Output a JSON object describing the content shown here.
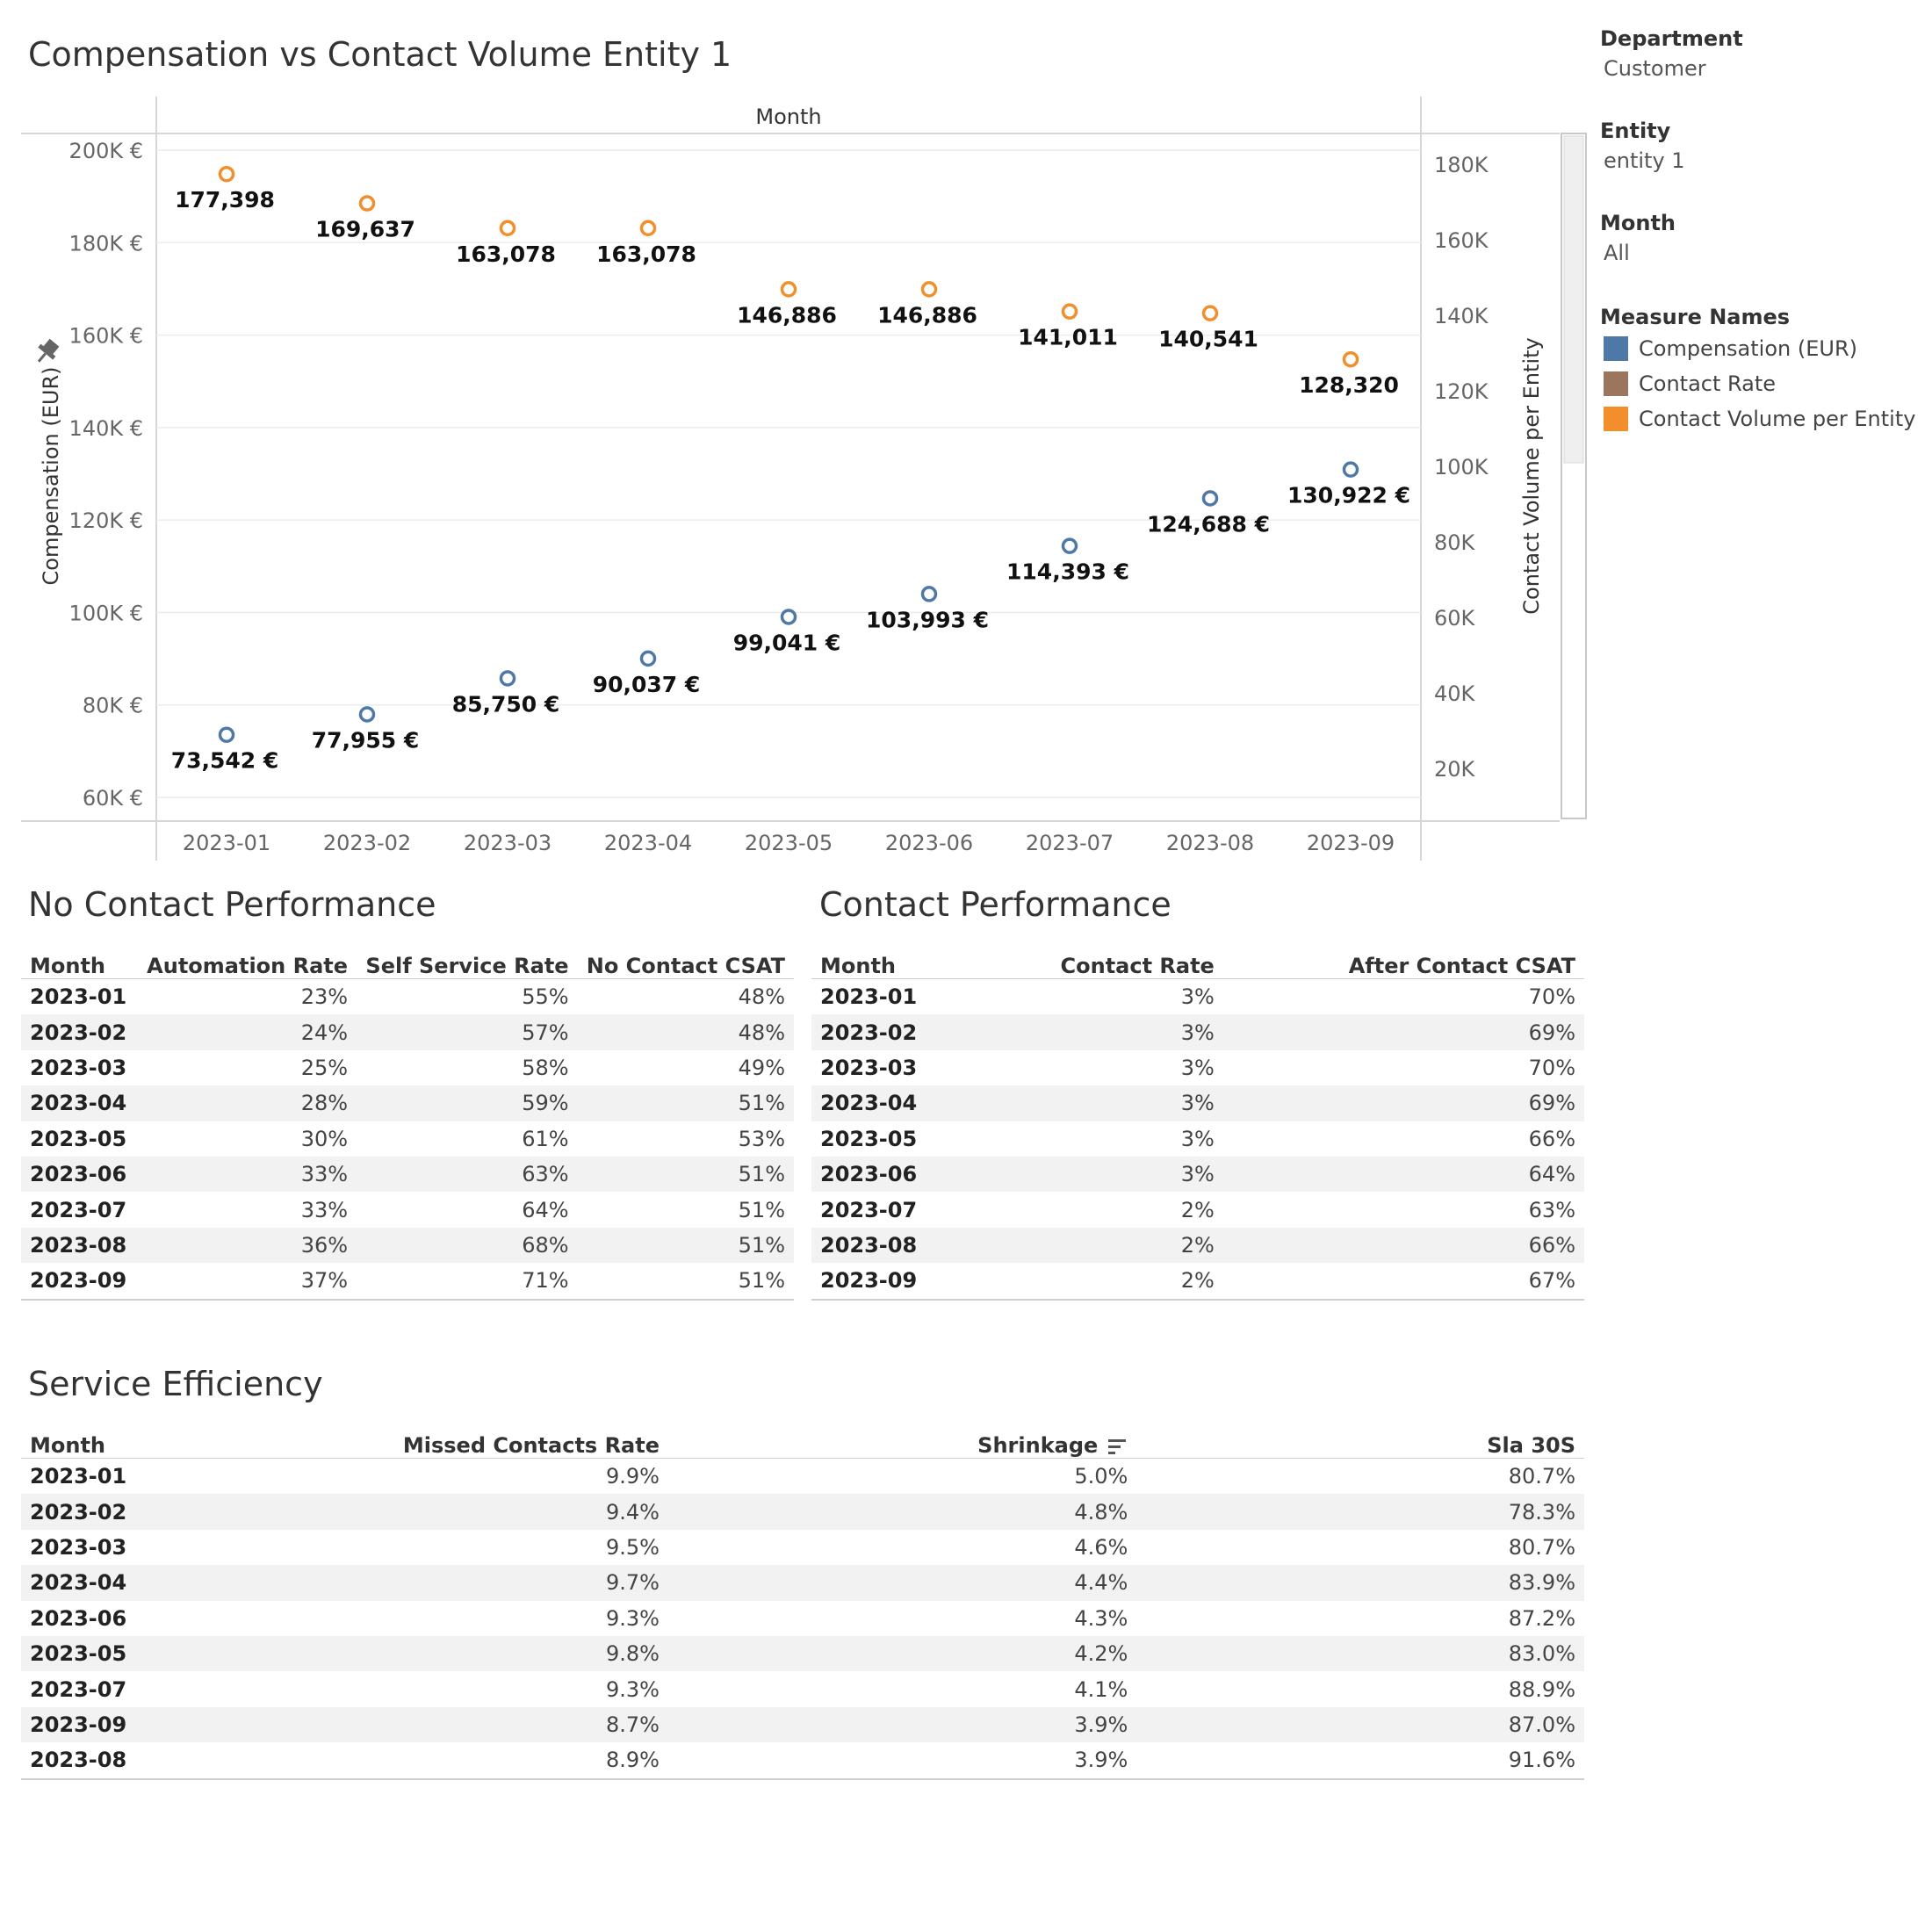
{
  "dashboard": {
    "chart_title": "Compensation vs Contact Volume Entity 1",
    "table1_title": "No Contact Performance",
    "table2_title": "Contact Performance",
    "table3_title": "Service Efficiency"
  },
  "filters": {
    "department_label": "Department",
    "department_value": "Customer",
    "entity_label": "Entity",
    "entity_value": "entity 1",
    "month_label": "Month",
    "month_value": "All",
    "legend_title": "Measure Names",
    "legend": [
      {
        "label": "Compensation (EUR)",
        "color": "#4e79a7"
      },
      {
        "label": "Contact Rate",
        "color": "#9c755f"
      },
      {
        "label": "Contact Volume per Entity",
        "color": "#f28e2b"
      }
    ]
  },
  "chart_data": {
    "type": "scatter",
    "header": "Month",
    "categories": [
      "2023-01",
      "2023-02",
      "2023-03",
      "2023-04",
      "2023-05",
      "2023-06",
      "2023-07",
      "2023-08",
      "2023-09"
    ],
    "y_left": {
      "label": "Compensation (EUR)",
      "ticks": [
        60000,
        80000,
        100000,
        120000,
        140000,
        160000,
        180000,
        200000
      ],
      "tick_labels": [
        "60K €",
        "80K €",
        "100K €",
        "120K €",
        "140K €",
        "160K €",
        "180K €",
        "200K €"
      ],
      "range": [
        56000,
        203000
      ]
    },
    "y_right": {
      "label": "Contact Volume per Entity",
      "ticks": [
        20000,
        40000,
        60000,
        80000,
        100000,
        120000,
        140000,
        160000,
        180000
      ],
      "tick_labels": [
        "20K",
        "40K",
        "60K",
        "80K",
        "100K",
        "120K",
        "140K",
        "160K",
        "180K"
      ],
      "range": [
        8000,
        188000
      ]
    },
    "series": [
      {
        "name": "Compensation (EUR)",
        "axis": "left",
        "color": "#4e79a7",
        "values": [
          73542,
          77955,
          85750,
          90037,
          99041,
          103993,
          114393,
          124688,
          130922
        ],
        "labels": [
          "73,542 €",
          "77,955 €",
          "85,750 €",
          "90,037 €",
          "99,041 €",
          "103,993 €",
          "114,393 €",
          "124,688 €",
          "130,922 €"
        ]
      },
      {
        "name": "Contact Volume per Entity",
        "axis": "right",
        "color": "#f28e2b",
        "values": [
          177398,
          169637,
          163078,
          163078,
          146886,
          146886,
          141011,
          140541,
          128320
        ],
        "labels": [
          "177,398",
          "169,637",
          "163,078",
          "163,078",
          "146,886",
          "146,886",
          "141,011",
          "140,541",
          "128,320"
        ]
      }
    ]
  },
  "table1": {
    "columns": [
      "Month",
      "Automation Rate",
      "Self Service Rate",
      "No Contact CSAT"
    ],
    "rows": [
      [
        "2023-01",
        "23%",
        "55%",
        "48%"
      ],
      [
        "2023-02",
        "24%",
        "57%",
        "48%"
      ],
      [
        "2023-03",
        "25%",
        "58%",
        "49%"
      ],
      [
        "2023-04",
        "28%",
        "59%",
        "51%"
      ],
      [
        "2023-05",
        "30%",
        "61%",
        "53%"
      ],
      [
        "2023-06",
        "33%",
        "63%",
        "51%"
      ],
      [
        "2023-07",
        "33%",
        "64%",
        "51%"
      ],
      [
        "2023-08",
        "36%",
        "68%",
        "51%"
      ],
      [
        "2023-09",
        "37%",
        "71%",
        "51%"
      ]
    ]
  },
  "table2": {
    "columns": [
      "Month",
      "Contact Rate",
      "After Contact CSAT"
    ],
    "rows": [
      [
        "2023-01",
        "3%",
        "70%"
      ],
      [
        "2023-02",
        "3%",
        "69%"
      ],
      [
        "2023-03",
        "3%",
        "70%"
      ],
      [
        "2023-04",
        "3%",
        "69%"
      ],
      [
        "2023-05",
        "3%",
        "66%"
      ],
      [
        "2023-06",
        "3%",
        "64%"
      ],
      [
        "2023-07",
        "2%",
        "63%"
      ],
      [
        "2023-08",
        "2%",
        "66%"
      ],
      [
        "2023-09",
        "2%",
        "67%"
      ]
    ]
  },
  "table3": {
    "columns": [
      "Month",
      "Missed Contacts Rate",
      "Shrinkage",
      "Sla 30S"
    ],
    "sort_icon": "sort-descending-icon",
    "rows": [
      [
        "2023-01",
        "9.9%",
        "5.0%",
        "80.7%"
      ],
      [
        "2023-02",
        "9.4%",
        "4.8%",
        "78.3%"
      ],
      [
        "2023-03",
        "9.5%",
        "4.6%",
        "80.7%"
      ],
      [
        "2023-04",
        "9.7%",
        "4.4%",
        "83.9%"
      ],
      [
        "2023-06",
        "9.3%",
        "4.3%",
        "87.2%"
      ],
      [
        "2023-05",
        "9.8%",
        "4.2%",
        "83.0%"
      ],
      [
        "2023-07",
        "9.3%",
        "4.1%",
        "88.9%"
      ],
      [
        "2023-09",
        "8.7%",
        "3.9%",
        "87.0%"
      ],
      [
        "2023-08",
        "8.9%",
        "3.9%",
        "91.6%"
      ]
    ]
  }
}
